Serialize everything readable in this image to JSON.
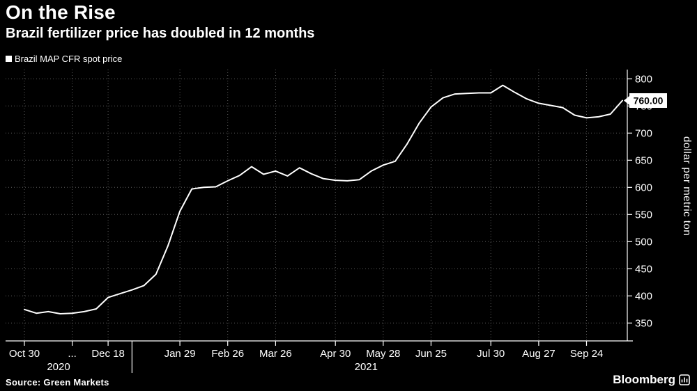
{
  "header": {
    "title": "On the Rise",
    "subtitle": "Brazil fertilizer price has doubled in 12 months"
  },
  "legend": {
    "label": "Brazil MAP CFR spot price",
    "marker_color": "#ffffff"
  },
  "chart_data": {
    "type": "line",
    "series_name": "Brazil MAP CFR spot price",
    "title": "On the Rise",
    "subtitle": "Brazil fertilizer price has doubled in 12 months",
    "ylabel": "dollar per metric ton",
    "start_date": "2020-10-30",
    "step_days": 7,
    "values": [
      375,
      368,
      371,
      367,
      368,
      371,
      376,
      397,
      404,
      411,
      419,
      440,
      492,
      556,
      597,
      600,
      601,
      612,
      622,
      638,
      624,
      630,
      621,
      636,
      625,
      616,
      613,
      612,
      614,
      630,
      641,
      648,
      680,
      718,
      748,
      765,
      772,
      773,
      774,
      774,
      788,
      775,
      763,
      755,
      751,
      747,
      733,
      728,
      730,
      735,
      760
    ],
    "x_ticks": [
      {
        "label": "Oct 30",
        "day": 0
      },
      {
        "label": "...",
        "day": 28
      },
      {
        "label": "Dec 18",
        "day": 49
      },
      {
        "label": "Jan 29",
        "day": 91
      },
      {
        "label": "Feb 26",
        "day": 119
      },
      {
        "label": "Mar 26",
        "day": 147
      },
      {
        "label": "Apr 30",
        "day": 182
      },
      {
        "label": "May 28",
        "day": 210
      },
      {
        "label": "Jun 25",
        "day": 238
      },
      {
        "label": "Jul 30",
        "day": 273
      },
      {
        "label": "Aug 27",
        "day": 301
      },
      {
        "label": "Sep 24",
        "day": 329
      }
    ],
    "year_labels": [
      {
        "label": "2020",
        "day": 20
      },
      {
        "label": "2021",
        "day": 200
      }
    ],
    "year_divider_day": 63,
    "y_ticks": [
      350,
      400,
      450,
      500,
      550,
      600,
      650,
      700,
      750,
      800
    ],
    "ylim": [
      317,
      817
    ],
    "grid": true,
    "legend_position": "top-left",
    "last_price_label": "760.00",
    "line_color": "#ffffff",
    "grid_color": "#5c5c5c",
    "axis_color": "#ffffff",
    "background_color": "#000000"
  },
  "footer": {
    "source": "Source: Green Markets",
    "brand": "Bloomberg"
  }
}
